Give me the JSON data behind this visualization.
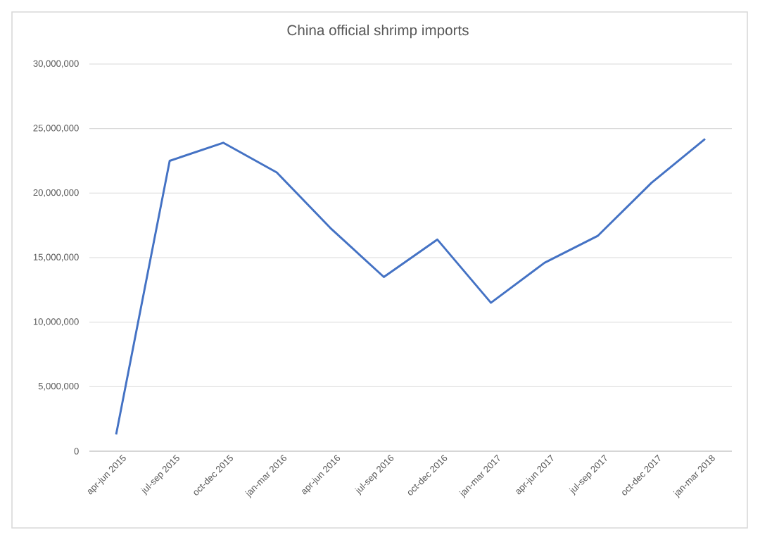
{
  "chart_data": {
    "type": "line",
    "title": "China official shrimp imports",
    "categories": [
      "apr-jun 2015",
      "jul-sep 2015",
      "oct-dec 2015",
      "jan-mar 2016",
      "apr-jun 2016",
      "jul-sep 2016",
      "oct-dec 2016",
      "jan-mar 2017",
      "apr-jun 2017",
      "jul-sep 2017",
      "oct-dec 2017",
      "jan-mar 2018"
    ],
    "values": [
      1300000,
      22500000,
      23900000,
      21600000,
      17300000,
      13500000,
      16400000,
      11500000,
      14600000,
      16700000,
      20800000,
      24200000
    ],
    "color": "#4472c4",
    "ylim": [
      0,
      30000000
    ],
    "yticks": [
      {
        "value": 0,
        "label": "0"
      },
      {
        "value": 5000000,
        "label": "5,000,000"
      },
      {
        "value": 10000000,
        "label": "10,000,000"
      },
      {
        "value": 15000000,
        "label": "15,000,000"
      },
      {
        "value": 20000000,
        "label": "20,000,000"
      },
      {
        "value": 25000000,
        "label": "25,000,000"
      },
      {
        "value": 30000000,
        "label": "30,000,000"
      }
    ],
    "grid": "y",
    "marker": "none",
    "line_style": "solid"
  }
}
